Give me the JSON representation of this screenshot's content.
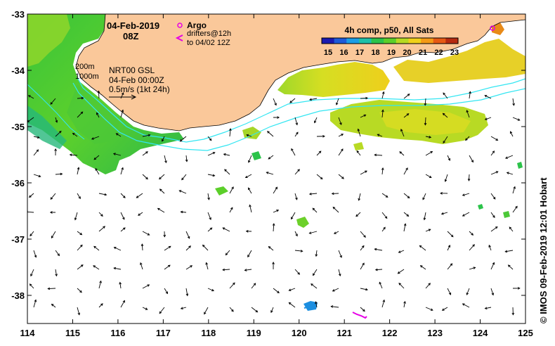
{
  "header": {
    "date": "04-Feb-2019",
    "time": "08Z"
  },
  "legend": {
    "argo_label": "Argo",
    "drifters_label": "drifters@12h",
    "drifters_sub": "to 04/02 12Z",
    "argo_color": "#e600e6",
    "drifter_color": "#e600e6"
  },
  "colorbar": {
    "title": "4h comp, p50, All Sats",
    "ticks": [
      "15",
      "16",
      "17",
      "18",
      "19",
      "20",
      "21",
      "22",
      "23"
    ],
    "colors": [
      "#1a1ab0",
      "#1e5ad8",
      "#1c9ee6",
      "#1fc0a8",
      "#2cc34a",
      "#5ccf2a",
      "#b6da23",
      "#f0d11a",
      "#f49a16",
      "#e65914",
      "#b52a10"
    ]
  },
  "annotations": {
    "isobath_200": "200m",
    "isobath_1000": "1000m",
    "product": "NRT00 GSL",
    "product_time": "04-Feb 00:00Z",
    "scale_label": "0.5m/s (1kt 24h)"
  },
  "axes": {
    "x_labels": [
      "114",
      "115",
      "116",
      "117",
      "118",
      "119",
      "120",
      "121",
      "122",
      "123",
      "124",
      "125"
    ],
    "y_labels": [
      "-33",
      "-34",
      "-35",
      "-36",
      "-37",
      "-38"
    ],
    "x_range": [
      114,
      125
    ],
    "y_range": [
      -38.5,
      -33
    ]
  },
  "credit": "© IMOS 09-Feb-2019 12:01 Hobart",
  "colors": {
    "land": "#fac89a",
    "isobath": "#33e6f2",
    "arrow": "#000000"
  }
}
